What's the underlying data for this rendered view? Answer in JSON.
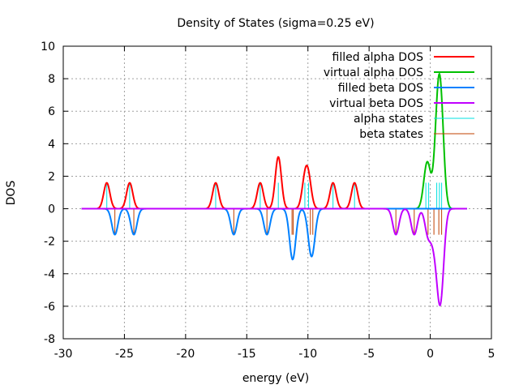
{
  "chart_data": {
    "type": "line",
    "title": "Density of States (sigma=0.25 eV)",
    "xlabel": "energy (eV)",
    "ylabel": "DOS",
    "xlim": [
      -30,
      5
    ],
    "ylim": [
      -8,
      10
    ],
    "xticks": [
      -30,
      -25,
      -20,
      -15,
      -10,
      -5,
      0,
      5
    ],
    "xtick_labels": [
      "-30",
      "-25",
      "-20",
      "-15",
      "-10",
      "-5",
      "0",
      "5"
    ],
    "yticks": [
      -8,
      -6,
      -4,
      -2,
      0,
      2,
      4,
      6,
      8,
      10
    ],
    "ytick_labels": [
      "-8",
      "-6",
      "-4",
      "-2",
      "0",
      "2",
      "4",
      "6",
      "8",
      "10"
    ],
    "grid": true,
    "legend_position": "top-right",
    "sigma": 0.25,
    "energy_range": [
      -28.5,
      3.0
    ],
    "stick_height": 1.6,
    "series": [
      {
        "name": "filled alpha DOS",
        "kind": "dos",
        "sign": 1,
        "color": "#ff0000",
        "states": [
          {
            "e": -26.44,
            "w": 1
          },
          {
            "e": -24.57,
            "w": 1
          },
          {
            "e": -17.54,
            "w": 1
          },
          {
            "e": -13.9,
            "w": 1
          },
          {
            "e": -12.42,
            "w": 2
          },
          {
            "e": -10.25,
            "w": 1
          },
          {
            "e": -9.95,
            "w": 1
          },
          {
            "e": -7.95,
            "w": 1
          },
          {
            "e": -6.19,
            "w": 1
          }
        ],
        "peaks": [
          {
            "x": -26.44,
            "y": 1.6
          },
          {
            "x": -24.57,
            "y": 1.6
          },
          {
            "x": -17.54,
            "y": 1.6
          },
          {
            "x": -13.9,
            "y": 1.6
          },
          {
            "x": -12.42,
            "y": 3.2
          },
          {
            "x": -10.1,
            "y": 2.5
          },
          {
            "x": -7.95,
            "y": 1.6
          },
          {
            "x": -6.19,
            "y": 1.6
          }
        ]
      },
      {
        "name": "virtual alpha DOS",
        "kind": "dos",
        "sign": 1,
        "color": "#00c000",
        "states": [
          {
            "e": -0.36,
            "w": 1
          },
          {
            "e": -0.13,
            "w": 1
          },
          {
            "e": 0.53,
            "w": 2
          },
          {
            "e": 0.75,
            "w": 2.3
          },
          {
            "e": 0.93,
            "w": 2
          }
        ],
        "peaks": [
          {
            "x": -0.3,
            "y": 3.0
          },
          {
            "x": 0.73,
            "y": 8.4
          }
        ]
      },
      {
        "name": "filled beta DOS",
        "kind": "dos",
        "sign": -1,
        "color": "#0080ff",
        "states": [
          {
            "e": -25.78,
            "w": 1
          },
          {
            "e": -24.23,
            "w": 1
          },
          {
            "e": -16.06,
            "w": 1
          },
          {
            "e": -13.35,
            "w": 1
          },
          {
            "e": -11.3,
            "w": 1
          },
          {
            "e": -11.2,
            "w": 1
          },
          {
            "e": -9.8,
            "w": 1
          },
          {
            "e": -9.6,
            "w": 1
          }
        ],
        "peaks": [
          {
            "x": -25.78,
            "y": -1.6
          },
          {
            "x": -24.23,
            "y": -1.6
          },
          {
            "x": -16.06,
            "y": -1.6
          },
          {
            "x": -13.35,
            "y": -1.6
          },
          {
            "x": -11.25,
            "y": -3.1
          },
          {
            "x": -9.7,
            "y": -3.1
          }
        ]
      },
      {
        "name": "virtual beta DOS",
        "kind": "dos",
        "sign": -1,
        "color": "#c000ff",
        "states": [
          {
            "e": -2.81,
            "w": 1
          },
          {
            "e": -1.31,
            "w": 1
          },
          {
            "e": -0.18,
            "w": 1
          },
          {
            "e": 0.3,
            "w": 1
          },
          {
            "e": 0.7,
            "w": 2
          },
          {
            "e": 0.93,
            "w": 2
          }
        ],
        "peaks": [
          {
            "x": -2.85,
            "y": -1.6
          },
          {
            "x": -1.31,
            "y": -1.6
          },
          {
            "x": 0.77,
            "y": -6.1
          }
        ]
      },
      {
        "name": "alpha states",
        "kind": "sticks",
        "sign": 1,
        "color": "#00e0e0",
        "energies": [
          -26.44,
          -24.57,
          -17.54,
          -13.9,
          -12.42,
          -10.25,
          -9.95,
          -7.95,
          -6.19,
          -0.36,
          -0.13,
          0.53,
          0.75,
          0.93
        ]
      },
      {
        "name": "beta states",
        "kind": "sticks",
        "sign": -1,
        "color": "#c04000",
        "energies": [
          -25.78,
          -24.23,
          -16.06,
          -13.35,
          -11.3,
          -11.2,
          -9.8,
          -9.6,
          -2.81,
          -1.31,
          -0.18,
          0.3,
          0.7,
          0.93
        ]
      }
    ]
  }
}
